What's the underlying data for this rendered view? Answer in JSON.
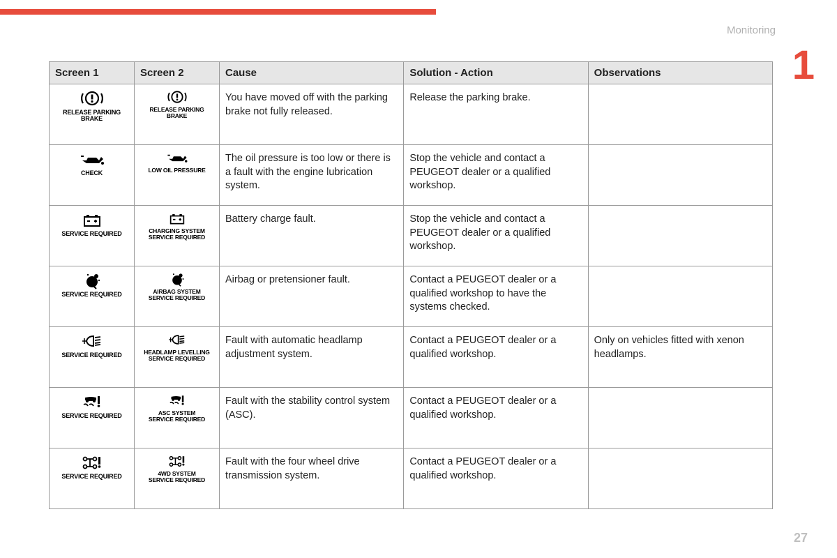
{
  "section": "Monitoring",
  "chapter": "1",
  "pageNumber": "27",
  "colors": {
    "accent": "#e74c3c",
    "headerBg": "#e6e6e6",
    "border": "#9a9a9a",
    "muted": "#b0b0b0"
  },
  "columns": [
    "Screen 1",
    "Screen 2",
    "Cause",
    "Solution - Action",
    "Observations"
  ],
  "rows": [
    {
      "s1": {
        "icon": "parking-brake",
        "label": "RELEASE PARKING BRAKE"
      },
      "s2": {
        "icon": "parking-brake",
        "label": "RELEASE PARKING BRAKE"
      },
      "cause": "You have moved off with the parking brake not fully released.",
      "solution": "Release the parking brake.",
      "obs": ""
    },
    {
      "s1": {
        "icon": "oil",
        "label": "CHECK"
      },
      "s2": {
        "icon": "oil",
        "label": "LOW OIL PRESSURE"
      },
      "cause": "The oil pressure is too low or there is a fault with the engine lubrication system.",
      "solution": "Stop the vehicle and contact a PEUGEOT dealer or a qualified workshop.",
      "obs": ""
    },
    {
      "s1": {
        "icon": "battery",
        "label": "SERVICE REQUIRED"
      },
      "s2": {
        "icon": "battery",
        "label": "CHARGING SYSTEM SERVICE REQUIRED"
      },
      "cause": "Battery charge fault.",
      "solution": "Stop the vehicle and contact a PEUGEOT dealer or a qualified workshop.",
      "obs": ""
    },
    {
      "s1": {
        "icon": "airbag",
        "label": "SERVICE REQUIRED"
      },
      "s2": {
        "icon": "airbag",
        "label": "AIRBAG SYSTEM SERVICE REQUIRED"
      },
      "cause": "Airbag or pretensioner fault.",
      "solution": "Contact a PEUGEOT dealer or a qualified workshop to have the systems checked.",
      "obs": ""
    },
    {
      "s1": {
        "icon": "headlamp",
        "label": "SERVICE REQUIRED"
      },
      "s2": {
        "icon": "headlamp",
        "label": "HEADLAMP LEVELLING SERVICE REQUIRED"
      },
      "cause": "Fault with automatic headlamp adjustment system.",
      "solution": "Contact a PEUGEOT dealer or a qualified workshop.",
      "obs": "Only on vehicles fitted with xenon headlamps."
    },
    {
      "s1": {
        "icon": "asc",
        "label": "SERVICE REQUIRED"
      },
      "s2": {
        "icon": "asc",
        "label": "ASC SYSTEM SERVICE REQUIRED"
      },
      "cause": "Fault with the stability control system (ASC).",
      "solution": "Contact a PEUGEOT dealer or a qualified workshop.",
      "obs": ""
    },
    {
      "s1": {
        "icon": "4wd",
        "label": "SERVICE REQUIRED"
      },
      "s2": {
        "icon": "4wd",
        "label": "4WD SYSTEM SERVICE REQUIRED"
      },
      "cause": "Fault with the four wheel drive transmission system.",
      "solution": "Contact a PEUGEOT dealer or a qualified workshop.",
      "obs": ""
    }
  ]
}
